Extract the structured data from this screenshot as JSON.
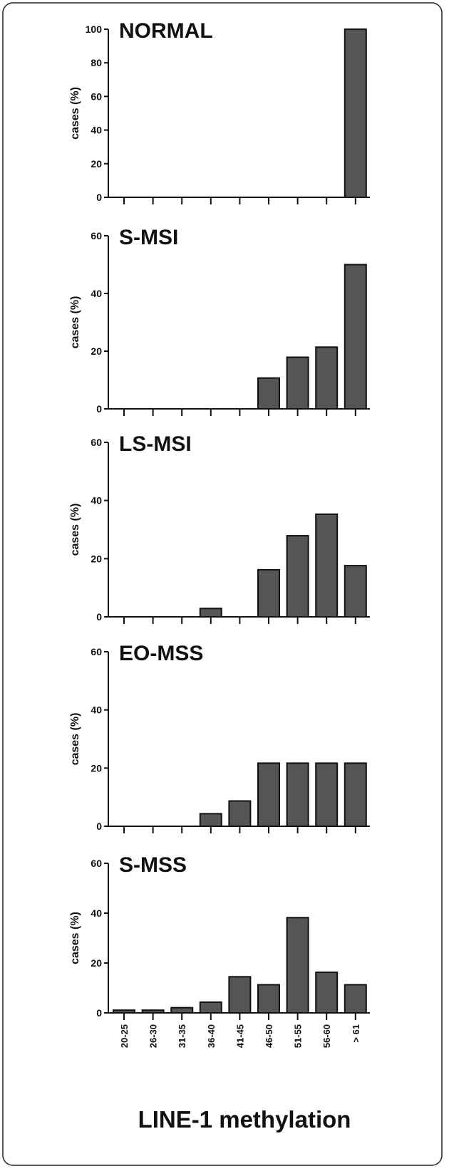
{
  "chart_data": {
    "type": "bar",
    "xlabel": "LINE-1 methylation",
    "categories": [
      "20-25",
      "26-30",
      "31-35",
      "36-40",
      "41-45",
      "46-50",
      "51-55",
      "56-60",
      "> 61"
    ],
    "bar_color": "#555555",
    "panels": [
      {
        "title": "NORMAL",
        "ylabel": "cases (%)",
        "ylim": [
          0,
          100
        ],
        "yticks": [
          0,
          20,
          40,
          60,
          80,
          100
        ],
        "values": [
          0,
          0,
          0,
          0,
          0,
          0,
          0,
          0,
          100
        ]
      },
      {
        "title": "S-MSI",
        "ylabel": "cases (%)",
        "ylim": [
          0,
          60
        ],
        "yticks": [
          0,
          20,
          40,
          60
        ],
        "values": [
          0,
          0,
          0,
          0,
          0,
          10.7,
          17.9,
          21.4,
          50
        ]
      },
      {
        "title": "LS-MSI",
        "ylabel": "cases (%)",
        "ylim": [
          0,
          60
        ],
        "yticks": [
          0,
          20,
          40,
          60
        ],
        "values": [
          0,
          0,
          0,
          2.9,
          0,
          16.2,
          27.9,
          35.3,
          17.6
        ]
      },
      {
        "title": "EO-MSS",
        "ylabel": "cases (%)",
        "ylim": [
          0,
          60
        ],
        "yticks": [
          0,
          20,
          40,
          60
        ],
        "values": [
          0,
          0,
          0,
          4.3,
          8.7,
          21.7,
          21.7,
          21.7,
          21.7
        ]
      },
      {
        "title": "S-MSS",
        "ylabel": "cases (%)",
        "ylim": [
          0,
          60
        ],
        "yticks": [
          0,
          20,
          40,
          60
        ],
        "values": [
          1.1,
          1.1,
          2.1,
          4.3,
          14.5,
          11.3,
          38.2,
          16.3,
          11.3
        ]
      }
    ]
  }
}
